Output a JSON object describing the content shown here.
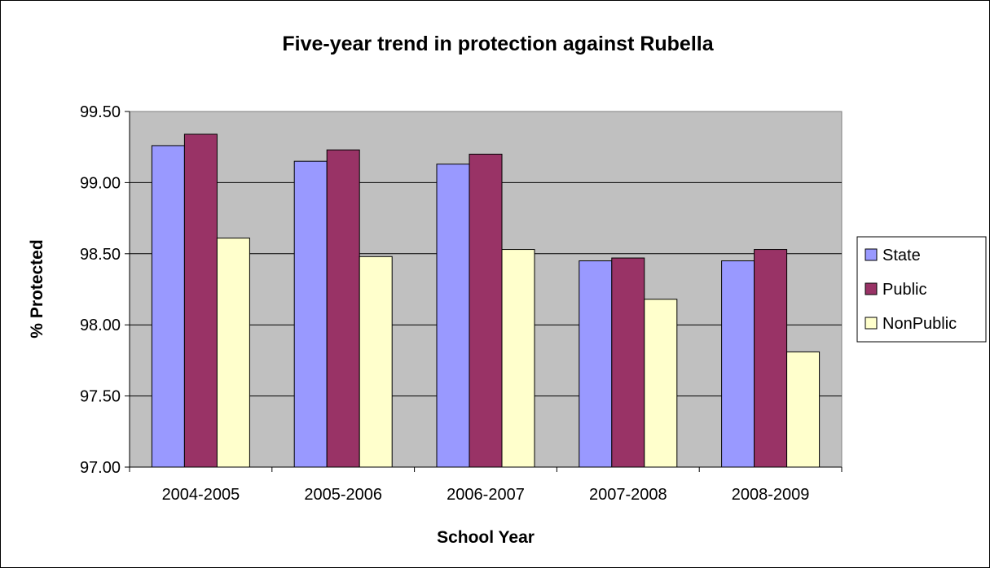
{
  "chart_data": {
    "type": "bar",
    "title": "Five-year trend in protection against Rubella",
    "xlabel": "School Year",
    "ylabel": "% Protected",
    "categories": [
      "2004-2005",
      "2005-2006",
      "2006-2007",
      "2007-2008",
      "2008-2009"
    ],
    "series": [
      {
        "name": "State",
        "color": "#9999ff",
        "values": [
          99.26,
          99.15,
          99.13,
          98.45,
          98.45
        ]
      },
      {
        "name": "Public",
        "color": "#993366",
        "values": [
          99.34,
          99.23,
          99.2,
          98.47,
          98.53
        ]
      },
      {
        "name": "NonPublic",
        "color": "#ffffcc",
        "values": [
          98.61,
          98.48,
          98.53,
          98.18,
          97.81
        ]
      }
    ],
    "ylim": [
      97.0,
      99.5
    ],
    "yticks": [
      "97.00",
      "97.50",
      "98.00",
      "98.50",
      "99.00",
      "99.50"
    ],
    "grid": true,
    "plot_background": "#c0c0c0",
    "legend_position": "right"
  }
}
